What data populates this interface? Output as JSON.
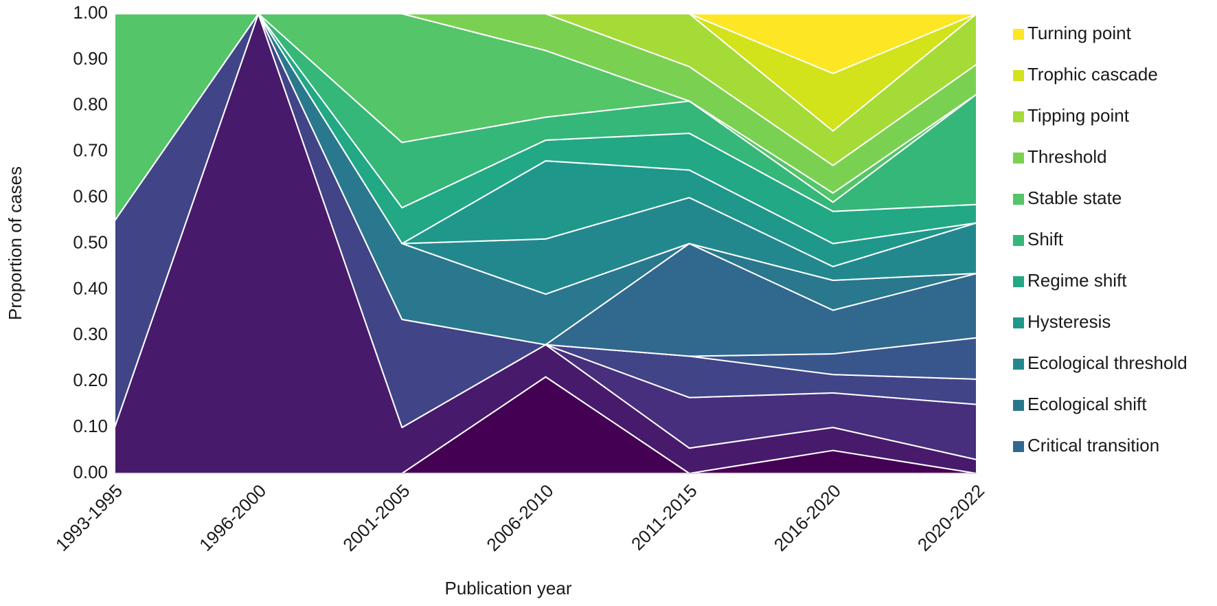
{
  "chart_data": {
    "type": "stacked_area",
    "x_label": "Publication year",
    "y_label": "Proportion of cases",
    "categories": [
      "1993-1995",
      "1996-2000",
      "2001-2005",
      "2006-2010",
      "2011-2015",
      "2016-2020",
      "2020-2022"
    ],
    "ylim": [
      0,
      1
    ],
    "yticks": [
      {
        "value": 0,
        "label": "0.00"
      },
      {
        "value": 0.1,
        "label": "0.10"
      },
      {
        "value": 0.2,
        "label": "0.20"
      },
      {
        "value": 0.3,
        "label": "0.30"
      },
      {
        "value": 0.4,
        "label": "0.40"
      },
      {
        "value": 0.5,
        "label": "0.50"
      },
      {
        "value": 0.6,
        "label": "0.60"
      },
      {
        "value": 0.7,
        "label": "0.70"
      },
      {
        "value": 0.8,
        "label": "0.80"
      },
      {
        "value": 0.9,
        "label": "0.90"
      },
      {
        "value": 1,
        "label": "1.00"
      }
    ],
    "legend": "right",
    "series": [
      {
        "color": "#440154",
        "values": [
          0,
          0,
          0,
          0.21,
          0,
          0.05,
          0
        ]
      },
      {
        "color": "#481a6c",
        "values": [
          0.1,
          1,
          0.1,
          0.07,
          0.055,
          0.05,
          0.03
        ]
      },
      {
        "color": "#472f7d",
        "values": [
          0,
          0,
          0,
          0,
          0.11,
          0.075,
          0.12
        ]
      },
      {
        "color": "#414487",
        "values": [
          0.45,
          0,
          0.235,
          0,
          0.09,
          0.04,
          0.055
        ]
      },
      {
        "color": "#39568c",
        "values": [
          0,
          0,
          0,
          0,
          0,
          0.045,
          0.09
        ]
      },
      {
        "name": "Critical transition",
        "color": "#31688e",
        "values": [
          0,
          0,
          0,
          0,
          0.245,
          0.095,
          0.14
        ]
      },
      {
        "name": "Ecological shift",
        "color": "#2a788e",
        "values": [
          0,
          0,
          0.165,
          0.11,
          0,
          0.065,
          0
        ]
      },
      {
        "name": "Ecological threshold",
        "color": "#23888e",
        "values": [
          0,
          0,
          0,
          0.12,
          0.1,
          0.03,
          0.11
        ]
      },
      {
        "name": "Hysteresis",
        "color": "#1f988b",
        "values": [
          0,
          0,
          0,
          0.17,
          0.06,
          0.05,
          0
        ]
      },
      {
        "name": "Regime shift",
        "color": "#22a884",
        "values": [
          0,
          0,
          0.078,
          0.045,
          0.08,
          0.07,
          0.04
        ]
      },
      {
        "name": "Shift",
        "color": "#35b779",
        "values": [
          0,
          0,
          0.142,
          0.05,
          0.07,
          0.02,
          0.24
        ]
      },
      {
        "name": "Stable state",
        "color": "#54c568",
        "values": [
          0.45,
          0,
          0.28,
          0.145,
          0,
          0.02,
          0
        ]
      },
      {
        "name": "Threshold",
        "color": "#7ad151",
        "values": [
          0,
          0,
          0,
          0.08,
          0.075,
          0.06,
          0.065
        ]
      },
      {
        "name": "Tipping point",
        "color": "#a5db36",
        "values": [
          0,
          0,
          0,
          0,
          0.115,
          0.075,
          0.11
        ]
      },
      {
        "name": "Trophic cascade",
        "color": "#d2e21b",
        "values": [
          0,
          0,
          0,
          0,
          0,
          0.125,
          0
        ]
      },
      {
        "name": "Turning point",
        "color": "#fde725",
        "values": [
          0,
          0,
          0,
          0,
          0,
          0.13,
          0
        ]
      }
    ]
  }
}
